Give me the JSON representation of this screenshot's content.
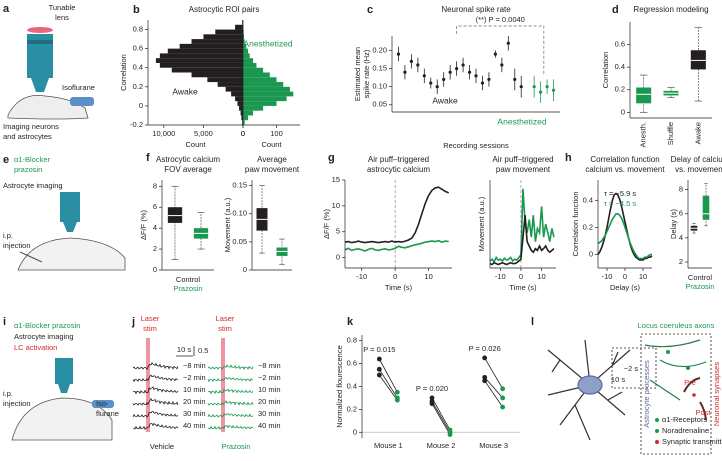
{
  "chart_data": [
    {
      "type": "mirrored-histogram",
      "letter": "b",
      "title": [
        "Astrocytic ROI pairs"
      ],
      "ylabel": "Correlation",
      "ylim": [
        -0.2,
        0.9
      ],
      "yticks": [
        -0.2,
        0,
        0.2,
        0.4,
        0.6,
        0.8
      ],
      "bins": [
        -0.2,
        -0.15,
        -0.1,
        -0.05,
        0,
        0.05,
        0.1,
        0.15,
        0.2,
        0.25,
        0.3,
        0.35,
        0.4,
        0.45,
        0.5,
        0.55,
        0.6,
        0.65,
        0.7,
        0.75,
        0.8,
        0.85,
        0.9
      ],
      "series": [
        {
          "name": "Awake",
          "color": "#231f20",
          "xlabel": "Count",
          "xlim": [
            12000,
            0
          ],
          "xticks": [
            {
              "value": 10000,
              "label": "10,000"
            },
            {
              "value": 5000,
              "label": "5,000"
            },
            0
          ],
          "values": [
            100,
            200,
            300,
            500,
            700,
            1000,
            1500,
            2200,
            3200,
            4500,
            6500,
            9000,
            10500,
            11000,
            10500,
            9500,
            8000,
            6500,
            5000,
            3500,
            1000,
            100
          ]
        },
        {
          "name": "Anesthetized",
          "color": "#1a9850",
          "xlabel": "Count",
          "xlim": [
            0,
            170
          ],
          "xticks": [
            0,
            100
          ],
          "values": [
            5,
            15,
            30,
            60,
            100,
            130,
            150,
            140,
            120,
            100,
            80,
            60,
            40,
            30,
            20,
            15,
            10,
            5,
            3,
            2,
            1,
            0
          ]
        }
      ]
    },
    {
      "type": "errorbar",
      "letter": "c",
      "title": [
        "Neuronal spike rate"
      ],
      "annotation": "(**) P = 0.0040",
      "ylabel": [
        "Estimated mean",
        "spike rate (Hz)"
      ],
      "xlabel": "Recording sessions",
      "xlim": [
        0,
        26
      ],
      "ylim": [
        0.03,
        0.24
      ],
      "yticks": [
        0.05,
        {
          "value": 0.1,
          "label": "0.10"
        },
        0.15,
        {
          "value": 0.2,
          "label": "0.20"
        }
      ],
      "series": [
        {
          "name": "Awake",
          "color": "#231f20",
          "x": [
            1,
            2,
            3,
            4,
            5,
            6,
            7,
            8,
            9,
            10,
            11,
            12,
            13,
            14,
            15,
            16,
            17,
            18,
            19,
            20
          ],
          "values": [
            0.19,
            0.14,
            0.17,
            0.16,
            0.13,
            0.11,
            0.1,
            0.12,
            0.14,
            0.15,
            0.16,
            0.14,
            0.13,
            0.11,
            0.12,
            0.19,
            0.16,
            0.22,
            0.12,
            0.1
          ],
          "errors": [
            0.02,
            0.02,
            0.02,
            0.02,
            0.02,
            0.015,
            0.02,
            0.02,
            0.02,
            0.02,
            0.02,
            0.02,
            0.02,
            0.02,
            0.02,
            0.01,
            0.02,
            0.02,
            0.03,
            0.03
          ]
        },
        {
          "name": "Anesthetized",
          "color": "#1a9850",
          "x": [
            22,
            23,
            24,
            25
          ],
          "values": [
            0.1,
            0.085,
            0.1,
            0.09
          ],
          "errors": [
            0.03,
            0.03,
            0.02,
            0.03
          ]
        }
      ]
    },
    {
      "type": "box",
      "letter": "d",
      "title": [
        "Regression modeling"
      ],
      "ylabel": "Correlation",
      "ylim": [
        -0.05,
        0.8
      ],
      "yticks": [
        0,
        0.2,
        0.4,
        0.6
      ],
      "categories": [
        "Anesth.",
        "Shuffle",
        "Awake"
      ],
      "boxes": [
        {
          "min": 0,
          "q1": 0.08,
          "median": 0.16,
          "q3": 0.22,
          "max": 0.33,
          "color": "#1a9850"
        },
        {
          "min": 0.13,
          "q1": 0.15,
          "median": 0.17,
          "q3": 0.19,
          "max": 0.22,
          "color": "#1a9850"
        },
        {
          "min": 0.1,
          "q1": 0.38,
          "median": 0.46,
          "q3": 0.55,
          "max": 0.75,
          "color": "#231f20"
        }
      ]
    },
    {
      "type": "box",
      "letter": "f",
      "title": [
        "Astrocytic calcium",
        "FOV average"
      ],
      "ylabel": "ΔF/F (%)",
      "ylim": [
        0,
        8.6
      ],
      "yticks": [
        0,
        2,
        4,
        6,
        8
      ],
      "categories": [
        "Control",
        "Prazosin"
      ],
      "boxes": [
        {
          "min": 1,
          "q1": 4.5,
          "median": 5.2,
          "q3": 6,
          "max": 8,
          "color": "#231f20"
        },
        {
          "min": 2,
          "q1": 3,
          "median": 3.5,
          "q3": 4,
          "max": 5.5,
          "color": "#1a9850"
        }
      ]
    },
    {
      "type": "box",
      "title": [
        "Average",
        "paw movement"
      ],
      "ylabel": "Movement (a.u.)",
      "ylim": [
        0,
        0.16
      ],
      "yticks": [
        0,
        0.05,
        {
          "value": 0.1,
          "label": "0.10"
        },
        0.15
      ],
      "categories": [
        null,
        null
      ],
      "boxes": [
        {
          "min": 0.03,
          "q1": 0.07,
          "median": 0.09,
          "q3": 0.11,
          "max": 0.15,
          "color": "#231f20"
        },
        {
          "min": 0.01,
          "q1": 0.025,
          "median": 0.033,
          "q3": 0.04,
          "max": 0.055,
          "color": "#1a9850"
        }
      ]
    },
    {
      "type": "line",
      "letter": "g",
      "title": [
        "Air puff–triggered",
        "astrocytic calcium"
      ],
      "ylabel": "ΔF/F (%)",
      "xlabel": "Time (s)",
      "xlim": [
        -15,
        17
      ],
      "xticks": [
        -10,
        0,
        10
      ],
      "ylim": [
        -2,
        15
      ],
      "yticks": [
        0,
        5,
        10,
        15
      ],
      "vline": 0,
      "x": [
        -15,
        -14,
        -13,
        -12,
        -11,
        -10,
        -9,
        -8,
        -7,
        -6,
        -5,
        -4,
        -3,
        -2,
        -1,
        0,
        1,
        2,
        3,
        4,
        5,
        6,
        7,
        8,
        9,
        10,
        11,
        12,
        13,
        14,
        15,
        16
      ],
      "series": [
        {
          "color": "#231f20",
          "values": [
            3,
            3.1,
            2.9,
            3,
            3.2,
            3,
            2.9,
            3,
            3.1,
            3,
            2.9,
            3,
            3.1,
            3,
            3.2,
            3,
            3.1,
            3,
            3.2,
            3.4,
            3.8,
            4.8,
            6.5,
            8.5,
            10.5,
            12,
            13,
            13.5,
            13.6,
            13.2,
            12.8,
            12.5
          ]
        },
        {
          "color": "#1a9850",
          "values": [
            1.5,
            1.8,
            1.4,
            1.6,
            1.7,
            1.5,
            1.3,
            1.6,
            1.8,
            1.5,
            1.4,
            1.6,
            1.7,
            1.5,
            1.6,
            1.8,
            2.2,
            2,
            1.9,
            2.1,
            2.3,
            2.5,
            2.6,
            2.8,
            3,
            3.1,
            3.2,
            3.1,
            3.3,
            3,
            3.2,
            3.1
          ]
        }
      ]
    },
    {
      "type": "line",
      "title": [
        "Air puff–triggered",
        "paw movement"
      ],
      "ylabel": "Movement (a.u.)",
      "xlabel": "Time (s)",
      "xlim": [
        -15,
        17
      ],
      "xticks": [
        -10,
        0,
        10
      ],
      "ylim": [
        0,
        1
      ],
      "vline": 0,
      "x": [
        -15,
        -14,
        -13,
        -12,
        -11,
        -10,
        -9,
        -8,
        -7,
        -6,
        -5,
        -4,
        -3,
        -2,
        -1,
        0,
        1,
        2,
        3,
        4,
        5,
        6,
        7,
        8,
        9,
        10,
        11,
        12,
        13,
        14,
        15,
        16
      ],
      "series": [
        {
          "color": "#1a9850",
          "values": [
            0.08,
            0.1,
            0.07,
            0.12,
            0.09,
            0.1,
            0.08,
            0.11,
            0.09,
            0.1,
            0.12,
            0.08,
            0.1,
            0.09,
            0.12,
            0.15,
            0.9,
            0.5,
            0.4,
            0.55,
            0.35,
            0.6,
            0.3,
            0.45,
            0.4,
            0.7,
            0.35,
            0.5,
            0.4,
            0.3,
            0.45,
            0.35
          ]
        },
        {
          "color": "#231f20",
          "values": [
            0.05,
            0.04,
            0.06,
            0.05,
            0.04,
            0.05,
            0.06,
            0.05,
            0.04,
            0.05,
            0.06,
            0.05,
            0.05,
            0.06,
            0.08,
            0.1,
            0.35,
            0.6,
            0.3,
            0.25,
            0.2,
            0.18,
            0.22,
            0.2,
            0.25,
            0.2,
            0.22,
            0.25,
            0.2,
            0.18,
            0.2,
            0.22
          ]
        }
      ]
    },
    {
      "type": "line",
      "letter": "h",
      "title": [
        "Correlation function",
        "calcium vs. movement"
      ],
      "ylabel": "Correlation function",
      "xlabel": "Delay (s)",
      "xlim": [
        -15,
        15
      ],
      "xticks": [
        -10,
        0,
        10
      ],
      "ylim": [
        -0.1,
        0.55
      ],
      "yticks": [
        0,
        0.2,
        0.4
      ],
      "annotations": [
        {
          "text": "τ = −5.9 s",
          "color": "#231f20"
        },
        {
          "text": "τ = −4.5 s",
          "color": "#1a9850"
        }
      ],
      "x": [
        -15,
        -14,
        -13,
        -12,
        -11,
        -10,
        -9,
        -8,
        -7,
        -6,
        -5,
        -4,
        -3,
        -2,
        -1,
        0,
        1,
        2,
        3,
        4,
        5,
        6,
        7,
        8,
        9,
        10,
        11,
        12,
        13,
        14,
        15
      ],
      "series": [
        {
          "color": "#231f20",
          "values": [
            0,
            0.02,
            0.05,
            0.09,
            0.14,
            0.2,
            0.27,
            0.34,
            0.4,
            0.44,
            0.45,
            0.44,
            0.41,
            0.36,
            0.3,
            0.24,
            0.18,
            0.12,
            0.07,
            0.03,
            0,
            -0.02,
            -0.03,
            -0.04,
            -0.04,
            -0.04,
            -0.03,
            -0.03,
            -0.02,
            -0.02,
            -0.01
          ]
        },
        {
          "color": "#1a9850",
          "values": [
            0.08,
            0.09,
            0.1,
            0.12,
            0.14,
            0.17,
            0.2,
            0.23,
            0.26,
            0.28,
            0.3,
            0.3,
            0.29,
            0.27,
            0.24,
            0.2,
            0.16,
            0.12,
            0.08,
            0.05,
            0.02,
            0,
            -0.02,
            -0.03,
            -0.03,
            -0.03,
            -0.02,
            -0.02,
            -0.01,
            0,
            0
          ]
        }
      ]
    },
    {
      "type": "box",
      "title": [
        "Delay of calcium",
        "vs. movement"
      ],
      "ylabel": "Delay (s)",
      "ylim": [
        1.5,
        8.8
      ],
      "yticks": [
        2,
        4,
        6,
        8
      ],
      "categories": [
        "Control",
        "Prazosin"
      ],
      "boxes": [
        {
          "min": 4.4,
          "q1": 4.6,
          "median": 4.8,
          "q3": 5,
          "max": 5.2,
          "color": "#231f20"
        },
        {
          "min": 5,
          "q1": 5.5,
          "median": 6,
          "q3": 7.5,
          "max": 8.5,
          "color": "#1a9850"
        }
      ]
    },
    {
      "type": "paired",
      "letter": "k",
      "ylabel": "Normalized flourescence",
      "ylim": [
        -0.05,
        0.85
      ],
      "yticks": [
        0,
        0.2,
        0.4,
        0.6,
        0.8
      ],
      "before_color": "#231f20",
      "after_color": "#1a9850",
      "groups": [
        {
          "label": "Mouse 1",
          "p_label": "P = 0.015",
          "before": [
            0.64,
            0.55,
            0.5
          ],
          "after": [
            0.35,
            0.3,
            0.28
          ]
        },
        {
          "label": "Mouse 2",
          "p_label": "P = 0.020",
          "before": [
            0.3,
            0.27,
            0.25
          ],
          "after": [
            0.02,
            0,
            -0.02
          ]
        },
        {
          "label": "Mouse 3",
          "p_label": "P = 0.026",
          "before": [
            0.65,
            0.48,
            0.45
          ],
          "after": [
            0.38,
            0.3,
            0.22
          ]
        }
      ]
    }
  ],
  "diagrams": {
    "a": {
      "letter": "a",
      "texts": [
        "Tunable",
        "lens",
        "Isoflurane",
        "Imaging neurons",
        "and astrocytes"
      ]
    },
    "e": {
      "letter": "e",
      "texts": [
        "α1-Blocker",
        "prazosin",
        "Astrocyte imaging",
        "i.p.",
        "injection"
      ]
    },
    "i": {
      "letter": "i",
      "texts": [
        "α1-Blocker prazosin",
        "Astrocyte imaging",
        "LC activation",
        "i.p.",
        "injection",
        "Iso-",
        "flurane"
      ]
    },
    "j": {
      "letter": "j",
      "texts": [
        "Laser",
        "stim",
        "Laser",
        "stim",
        "10 s",
        "0.5",
        "−8 min",
        "−2 min",
        "10 min",
        "20 min",
        "30 min",
        "40 min",
        "−8 min",
        "−2 min",
        "10 min",
        "20 min",
        "30 min",
        "40 min",
        "Vehicle",
        "Prazosin"
      ]
    },
    "l": {
      "letter": "l",
      "texts": [
        "Locus coeruleus axons",
        "Astrocyte processes",
        "Neuronal synapses",
        "Pre",
        "Post",
        "α1-Receptors",
        "Noradrenaline",
        "Synaptic transmitter",
        "10 s",
        "~2 s"
      ]
    }
  }
}
